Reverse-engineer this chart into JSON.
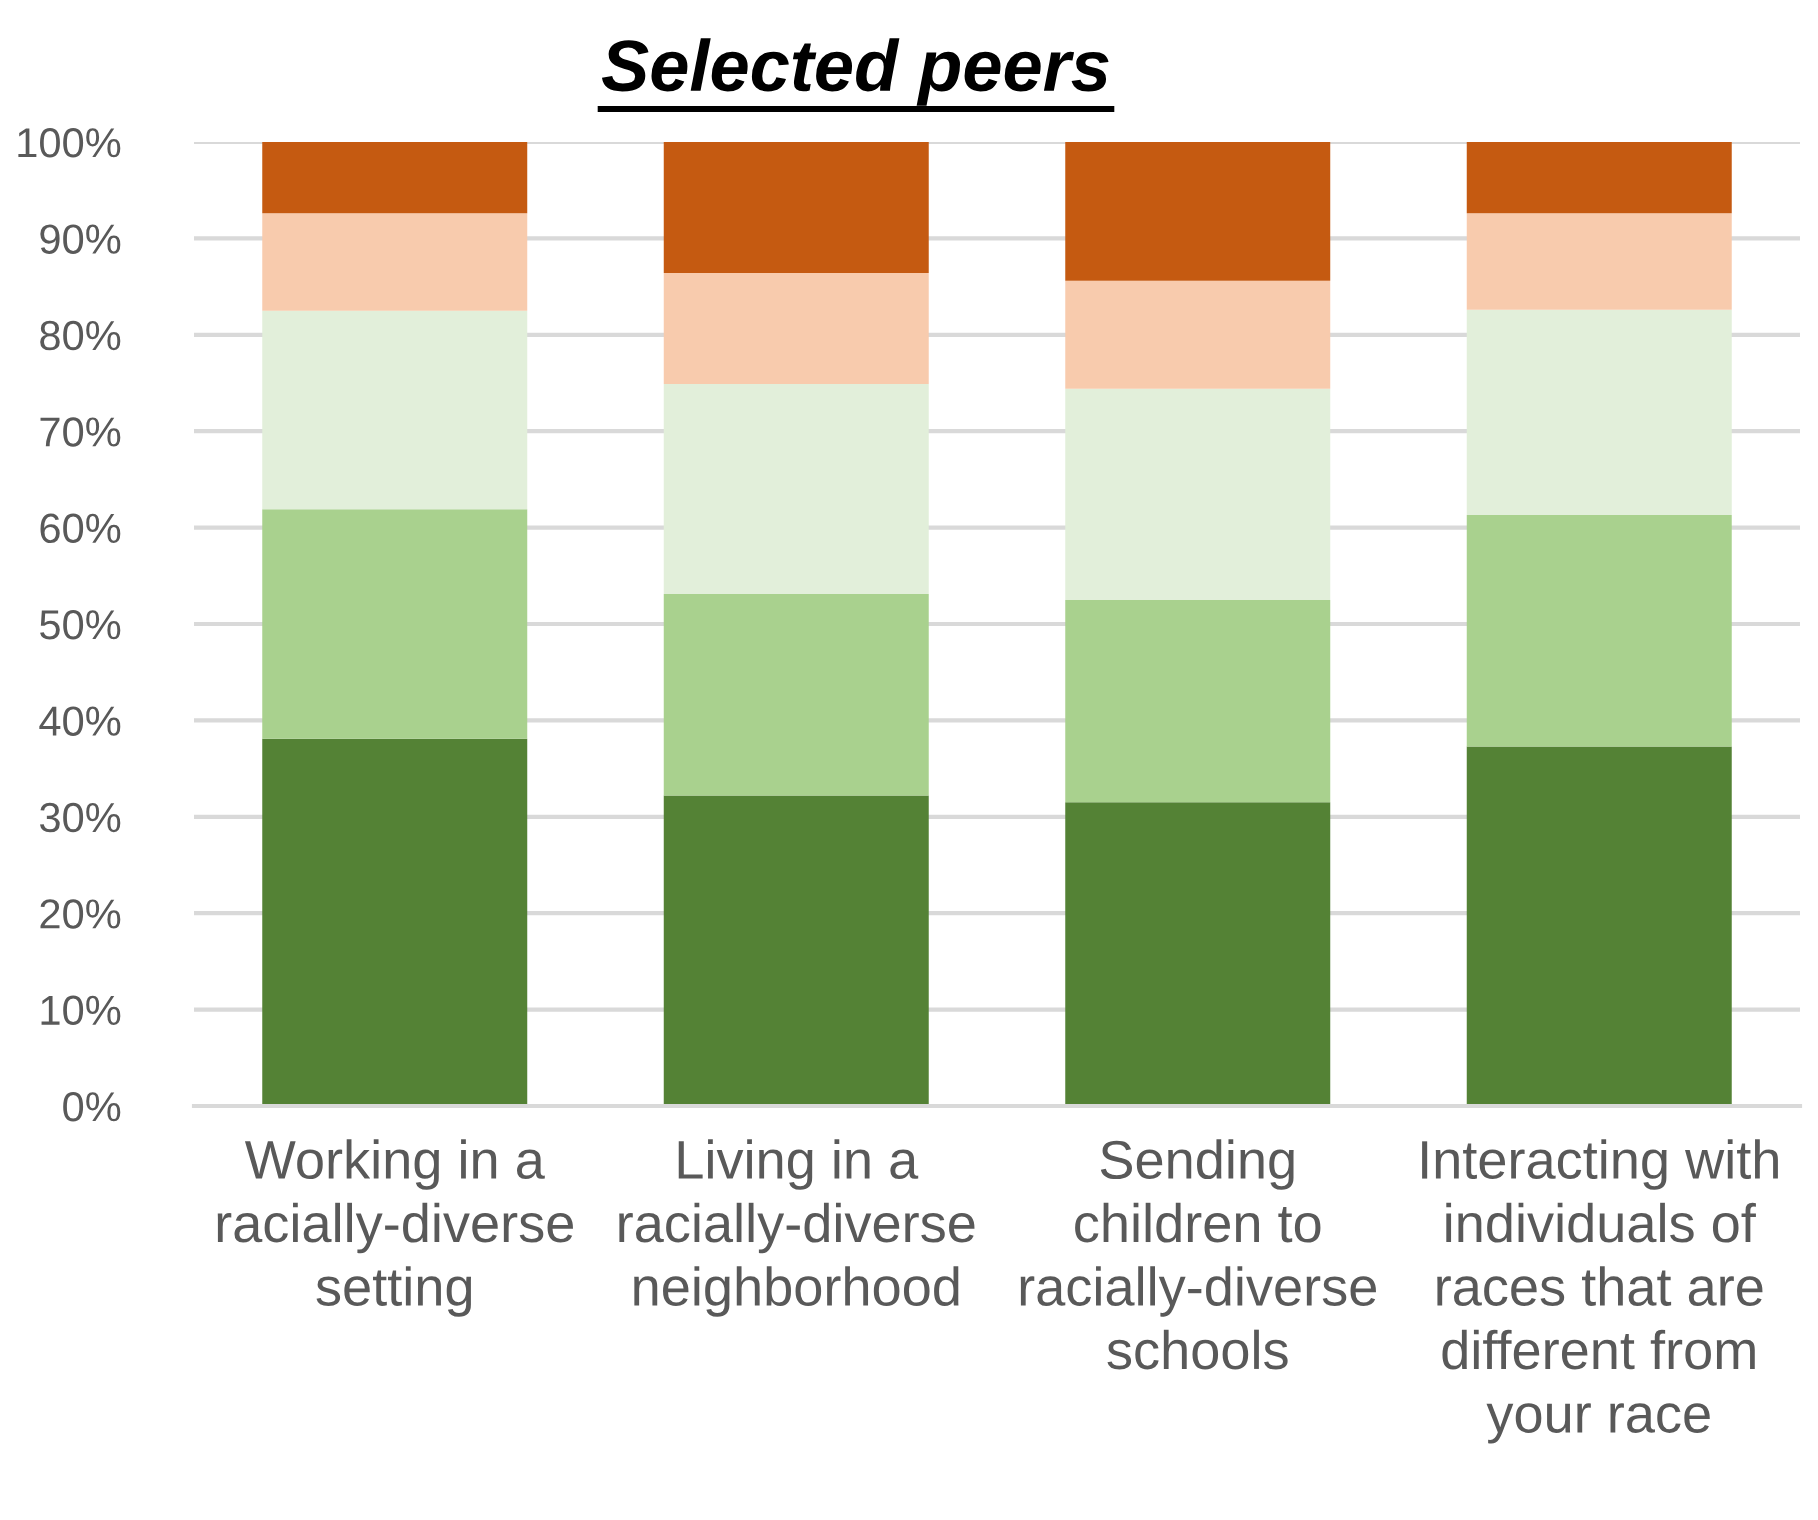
{
  "chart_data": {
    "type": "bar",
    "title": "Selected peers",
    "categories": [
      "Working in a\nracially-diverse\nsetting",
      "Living in a\nracially-diverse\nneighborhood",
      "Sending\nchildren to\nracially-diverse\nschools",
      "Interacting with\nindividuals of\nraces that are\ndifferent from\nyour race"
    ],
    "stacked": true,
    "series": [
      {
        "color": "#548235",
        "values": [
          38.1,
          32.2,
          31.5,
          37.3
        ]
      },
      {
        "color": "#a9d18e",
        "values": [
          23.8,
          20.9,
          21.0,
          24.0
        ]
      },
      {
        "color": "#e2efda",
        "values": [
          20.6,
          21.8,
          21.9,
          21.3
        ]
      },
      {
        "color": "#f8cbad",
        "values": [
          10.1,
          11.5,
          11.2,
          10.0
        ]
      },
      {
        "color": "#c55a11",
        "values": [
          7.4,
          13.6,
          14.4,
          7.4
        ]
      }
    ],
    "ylim": [
      0,
      100
    ],
    "yticks": [
      {
        "value": 0,
        "label": "0%"
      },
      {
        "value": 10,
        "label": "10%"
      },
      {
        "value": 20,
        "label": "20%"
      },
      {
        "value": 30,
        "label": "30%"
      },
      {
        "value": 40,
        "label": "40%"
      },
      {
        "value": 50,
        "label": "50%"
      },
      {
        "value": 60,
        "label": "60%"
      },
      {
        "value": 70,
        "label": "70%"
      },
      {
        "value": 80,
        "label": "80%"
      },
      {
        "value": 90,
        "label": "90%"
      },
      {
        "value": 100,
        "label": "100%"
      }
    ],
    "grid": "y"
  }
}
